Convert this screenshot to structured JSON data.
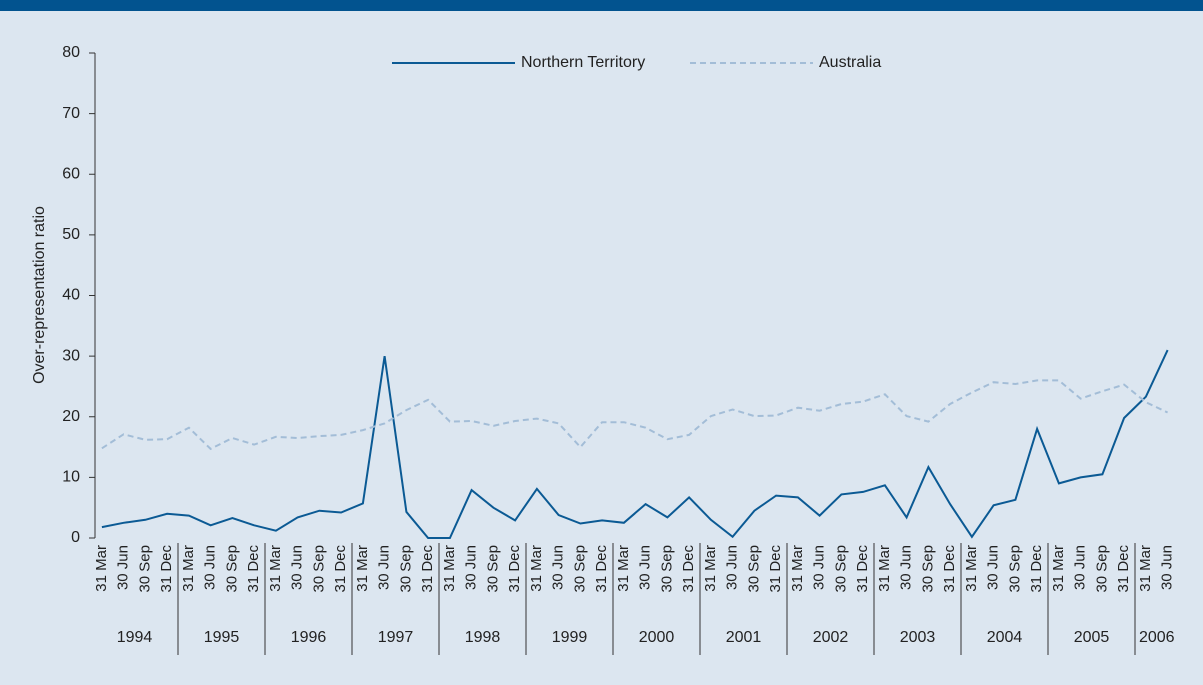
{
  "chart_data": {
    "type": "line",
    "y_label": "Over-representation ratio",
    "categories": [
      "31 Mar",
      "30 Jun",
      "30 Sep",
      "31 Dec",
      "31 Mar",
      "30 Jun",
      "30 Sep",
      "31 Dec",
      "31 Mar",
      "30 Jun",
      "30 Sep",
      "31 Dec",
      "31 Mar",
      "30 Jun",
      "30 Sep",
      "31 Dec",
      "31 Mar",
      "30 Jun",
      "30 Sep",
      "31 Dec",
      "31 Mar",
      "30 Jun",
      "30 Sep",
      "31 Dec",
      "31 Mar",
      "30 Jun",
      "30 Sep",
      "31 Dec",
      "31 Mar",
      "30 Jun",
      "30 Sep",
      "31 Dec",
      "31 Mar",
      "30 Jun",
      "30 Sep",
      "31 Dec",
      "31 Mar",
      "30 Jun",
      "30 Sep",
      "31 Dec",
      "31 Mar",
      "30 Jun",
      "30 Sep",
      "31 Dec",
      "31 Mar",
      "30 Jun",
      "30 Sep",
      "31 Dec",
      "31 Mar",
      "30 Jun"
    ],
    "year_labels": [
      "1994",
      "1995",
      "1996",
      "1997",
      "1998",
      "1999",
      "2000",
      "2001",
      "2002",
      "2003",
      "2004",
      "2005",
      "2006"
    ],
    "series": [
      {
        "name": "Northern Territory",
        "color": "#0b5a94",
        "dashed": false,
        "values": [
          1.8,
          2.5,
          3.0,
          4.0,
          3.7,
          2.1,
          3.3,
          2.1,
          1.2,
          3.4,
          4.5,
          4.2,
          5.7,
          30,
          4.3,
          0,
          0,
          7.9,
          5.0,
          2.9,
          8.1,
          3.8,
          2.4,
          2.9,
          2.5,
          5.6,
          3.4,
          6.7,
          3.0,
          0.2,
          4.5,
          7.0,
          6.7,
          3.7,
          7.2,
          7.6,
          8.7,
          3.4,
          11.7,
          5.6,
          0.2,
          5.4,
          6.3,
          18.0,
          9.0,
          10.0,
          10.5,
          19.8,
          23.3,
          31.0
        ]
      },
      {
        "name": "Australia",
        "color": "#a3bdd7",
        "dashed": true,
        "values": [
          14.8,
          17.1,
          16.2,
          16.3,
          18.2,
          14.7,
          16.5,
          15.4,
          16.7,
          16.5,
          16.8,
          17.0,
          17.8,
          18.9,
          21.1,
          22.8,
          19.2,
          19.3,
          18.5,
          19.3,
          19.7,
          18.9,
          15.0,
          19.1,
          19.1,
          18.2,
          16.3,
          17.0,
          20.1,
          21.2,
          20.1,
          20.2,
          21.5,
          21.0,
          22.1,
          22.5,
          23.7,
          20.1,
          19.2,
          22.1,
          24.0,
          25.7,
          25.4,
          26.0,
          26.0,
          23.0,
          24.2,
          25.3,
          22.4,
          20.7
        ]
      }
    ],
    "ylim": [
      0,
      80
    ],
    "yticks": [
      0,
      10,
      20,
      30,
      40,
      50,
      60,
      70,
      80
    ],
    "legend": "top"
  }
}
